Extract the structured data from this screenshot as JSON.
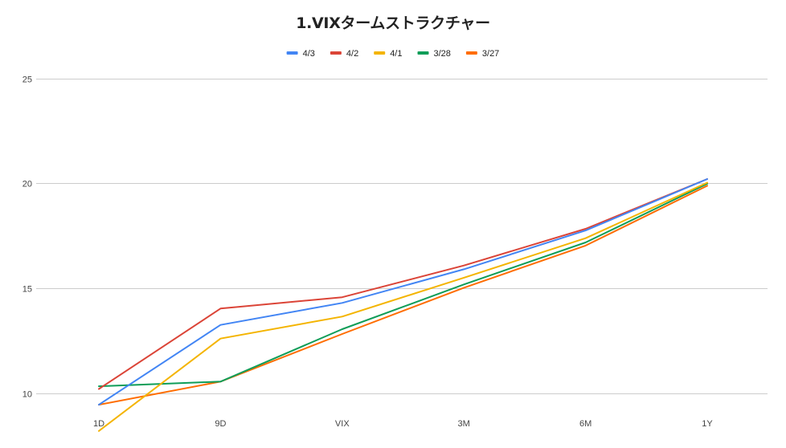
{
  "chart_data": {
    "type": "line",
    "title": "1.VIXタームストラクチャー",
    "categories": [
      "1D",
      "9D",
      "VIX",
      "3M",
      "6M",
      "1Y"
    ],
    "ylim": [
      8,
      25
    ],
    "yticks": [
      10,
      15,
      20,
      25
    ],
    "grid": true,
    "legend_position": "top",
    "series": [
      {
        "name": "4/3",
        "color": "#4285f4",
        "values": [
          9.45,
          13.25,
          14.3,
          15.9,
          17.75,
          20.2
        ]
      },
      {
        "name": "4/2",
        "color": "#db4437",
        "values": [
          10.2,
          14.03,
          14.57,
          16.08,
          17.83,
          20.2
        ]
      },
      {
        "name": "4/1",
        "color": "#f4b400",
        "values": [
          8.2,
          12.6,
          13.65,
          15.5,
          17.38,
          20.03
        ]
      },
      {
        "name": "3/28",
        "color": "#0f9d58",
        "values": [
          10.33,
          10.55,
          13.05,
          15.18,
          17.18,
          19.98
        ]
      },
      {
        "name": "3/27",
        "color": "#ff6d00",
        "values": [
          9.45,
          10.55,
          12.82,
          15.02,
          17.03,
          19.88
        ]
      }
    ]
  }
}
